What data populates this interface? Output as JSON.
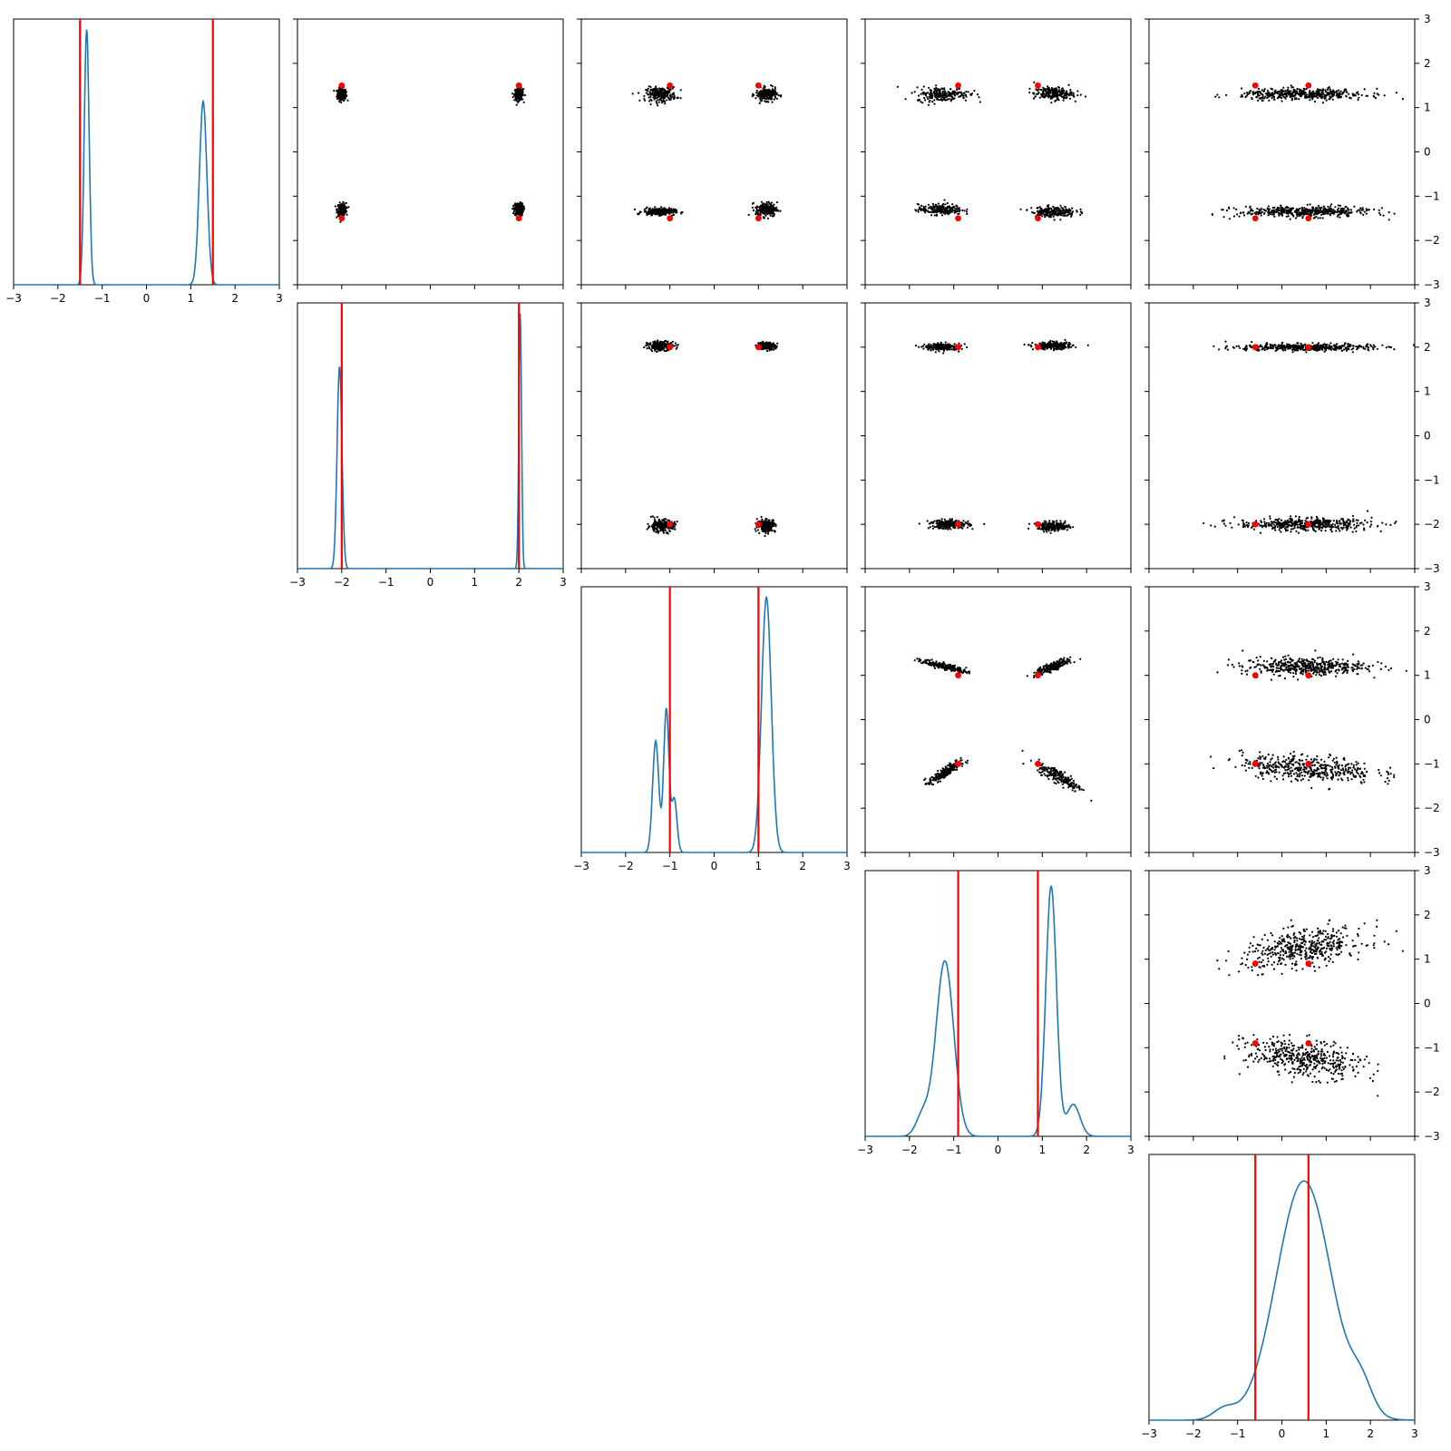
{
  "chart_data": {
    "type": "scatter",
    "layout": "corner-plot",
    "dimensions": 5,
    "axis_range": [
      -3,
      3
    ],
    "tick_values": [
      -3,
      -2,
      -1,
      0,
      1,
      2,
      3
    ],
    "tick_labels": [
      "−3",
      "−2",
      "−1",
      "0",
      "1",
      "2",
      "3"
    ],
    "truth": [
      1.5,
      2.0,
      1.0,
      0.9,
      0.6
    ],
    "colors": {
      "density": "#1f77b4",
      "truth": "#ff0000",
      "samples": "#000000"
    },
    "grid": false,
    "densities": [
      {
        "dim": 0,
        "peaks": [
          {
            "mu": -1.35,
            "sigma": 0.055,
            "height": 0.96
          },
          {
            "mu": 1.28,
            "sigma": 0.085,
            "height": 0.69
          }
        ]
      },
      {
        "dim": 1,
        "peaks": [
          {
            "mu": -2.05,
            "sigma": 0.055,
            "height": 0.76
          },
          {
            "mu": 2.03,
            "sigma": 0.03,
            "height": 0.96
          }
        ]
      },
      {
        "dim": 2,
        "peaks": [
          {
            "mu": -1.32,
            "sigma": 0.07,
            "height": 0.42
          },
          {
            "mu": -1.08,
            "sigma": 0.06,
            "height": 0.54
          },
          {
            "mu": -0.9,
            "sigma": 0.06,
            "height": 0.2
          },
          {
            "mu": 1.18,
            "sigma": 0.11,
            "height": 0.96
          }
        ]
      },
      {
        "dim": 3,
        "peaks": [
          {
            "mu": -1.2,
            "sigma": 0.2,
            "height": 0.66
          },
          {
            "mu": -1.7,
            "sigma": 0.15,
            "height": 0.08
          },
          {
            "mu": 1.2,
            "sigma": 0.12,
            "height": 0.94
          },
          {
            "mu": 1.7,
            "sigma": 0.15,
            "height": 0.12
          }
        ]
      },
      {
        "dim": 4,
        "peaks": [
          {
            "mu": 0.5,
            "sigma": 0.62,
            "height": 0.9
          },
          {
            "mu": 1.8,
            "sigma": 0.25,
            "height": 0.1
          },
          {
            "mu": -1.3,
            "sigma": 0.25,
            "height": 0.04
          }
        ]
      }
    ],
    "clusters": [
      {
        "x_dim": 1,
        "y_dim": 0,
        "blobs": [
          {
            "x": -2.0,
            "y": 1.3,
            "sx": 0.05,
            "sy": 0.07,
            "n": 220
          },
          {
            "x": 2.0,
            "y": 1.3,
            "sx": 0.05,
            "sy": 0.07,
            "n": 220
          },
          {
            "x": -2.0,
            "y": -1.3,
            "sx": 0.05,
            "sy": 0.07,
            "n": 220
          },
          {
            "x": 2.0,
            "y": -1.3,
            "sx": 0.05,
            "sy": 0.07,
            "n": 220
          }
        ]
      },
      {
        "x_dim": 2,
        "y_dim": 0,
        "blobs": [
          {
            "x": -1.2,
            "y": 1.3,
            "sx": 0.17,
            "sy": 0.08,
            "n": 220
          },
          {
            "x": 1.18,
            "y": 1.3,
            "sx": 0.12,
            "sy": 0.07,
            "n": 220
          },
          {
            "x": -1.25,
            "y": -1.35,
            "sx": 0.18,
            "sy": 0.04,
            "n": 220
          },
          {
            "x": 1.18,
            "y": -1.3,
            "sx": 0.12,
            "sy": 0.08,
            "n": 220
          }
        ]
      },
      {
        "x_dim": 3,
        "y_dim": 0,
        "blobs": [
          {
            "x": -1.25,
            "y": 1.3,
            "sx": 0.3,
            "sy": 0.08,
            "n": 220
          },
          {
            "x": 1.25,
            "y": 1.32,
            "sx": 0.22,
            "sy": 0.07,
            "n": 220
          },
          {
            "x": -1.3,
            "y": -1.3,
            "sx": 0.25,
            "sy": 0.06,
            "n": 220
          },
          {
            "x": 1.25,
            "y": -1.35,
            "sx": 0.25,
            "sy": 0.06,
            "n": 220
          }
        ]
      },
      {
        "x_dim": 4,
        "y_dim": 0,
        "blobs": [
          {
            "x": 0.5,
            "y": 1.3,
            "sx": 0.7,
            "sy": 0.06,
            "n": 450
          },
          {
            "x": 0.5,
            "y": -1.35,
            "sx": 0.75,
            "sy": 0.06,
            "n": 450
          }
        ]
      },
      {
        "x_dim": 2,
        "y_dim": 1,
        "blobs": [
          {
            "x": -1.2,
            "y": 2.03,
            "sx": 0.15,
            "sy": 0.05,
            "n": 220
          },
          {
            "x": 1.18,
            "y": 2.03,
            "sx": 0.1,
            "sy": 0.04,
            "n": 220
          },
          {
            "x": -1.2,
            "y": -2.03,
            "sx": 0.15,
            "sy": 0.07,
            "n": 220
          },
          {
            "x": 1.18,
            "y": -2.03,
            "sx": 0.1,
            "sy": 0.07,
            "n": 220
          }
        ]
      },
      {
        "x_dim": 3,
        "y_dim": 1,
        "blobs": [
          {
            "x": -1.25,
            "y": 2.0,
            "sx": 0.2,
            "sy": 0.04,
            "n": 220
          },
          {
            "x": 1.25,
            "y": 2.03,
            "sx": 0.22,
            "sy": 0.04,
            "n": 220
          },
          {
            "x": -1.1,
            "y": -2.0,
            "sx": 0.22,
            "sy": 0.05,
            "n": 220
          },
          {
            "x": 1.25,
            "y": -2.05,
            "sx": 0.18,
            "sy": 0.05,
            "n": 220
          }
        ]
      },
      {
        "x_dim": 4,
        "y_dim": 1,
        "blobs": [
          {
            "x": 0.5,
            "y": 2.0,
            "sx": 0.75,
            "sy": 0.04,
            "n": 450
          },
          {
            "x": 0.5,
            "y": -2.0,
            "sx": 0.75,
            "sy": 0.07,
            "n": 450
          }
        ]
      },
      {
        "x_dim": 3,
        "y_dim": 2,
        "blobs": [
          {
            "x": -1.2,
            "y": 1.2,
            "sx": 0.25,
            "sy": 0.07,
            "rho": -0.85,
            "n": 220
          },
          {
            "x": 1.25,
            "y": 1.2,
            "sx": 0.2,
            "sy": 0.09,
            "rho": 0.85,
            "n": 220
          },
          {
            "x": -1.2,
            "y": -1.2,
            "sx": 0.18,
            "sy": 0.12,
            "rho": 0.85,
            "n": 220
          },
          {
            "x": 1.4,
            "y": -1.3,
            "sx": 0.25,
            "sy": 0.15,
            "rho": -0.85,
            "n": 220
          }
        ]
      },
      {
        "x_dim": 4,
        "y_dim": 2,
        "blobs": [
          {
            "x": 0.5,
            "y": 1.2,
            "sx": 0.7,
            "sy": 0.1,
            "n": 450
          },
          {
            "x": 0.6,
            "y": -1.1,
            "sx": 0.75,
            "sy": 0.15,
            "rho": -0.3,
            "n": 450
          }
        ]
      },
      {
        "x_dim": 4,
        "y_dim": 3,
        "blobs": [
          {
            "x": 0.5,
            "y": 1.25,
            "sx": 0.7,
            "sy": 0.22,
            "rho": 0.4,
            "n": 450
          },
          {
            "x": 0.5,
            "y": -1.25,
            "sx": 0.65,
            "sy": 0.22,
            "rho": -0.4,
            "n": 450
          }
        ]
      }
    ]
  }
}
